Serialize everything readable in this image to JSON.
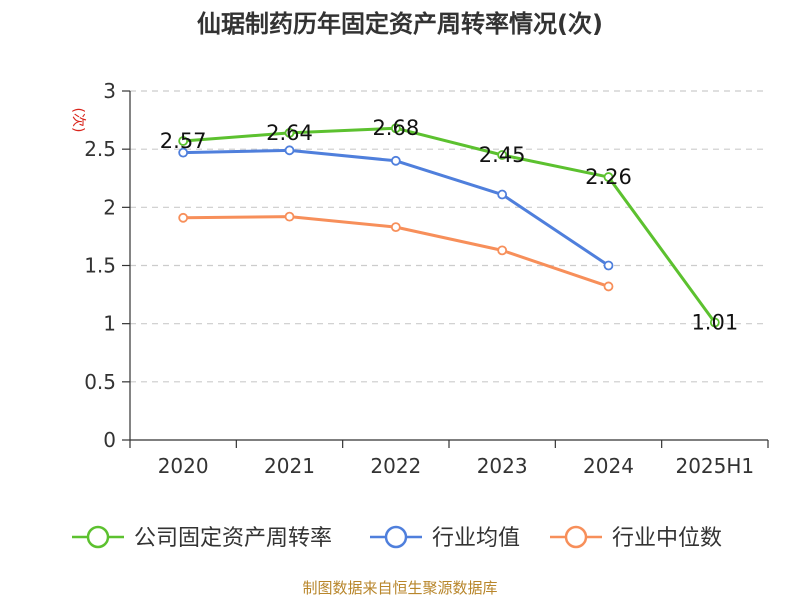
{
  "chart_data": {
    "type": "line",
    "title": "仙琚制药历年固定资产周转率情况(次)",
    "ylabel": "(次)",
    "xlabel": "",
    "categories": [
      "2020",
      "2021",
      "2022",
      "2023",
      "2024",
      "2025H1"
    ],
    "ylim": [
      0,
      3
    ],
    "yticks": [
      "0",
      "0.5",
      "1",
      "1.5",
      "2",
      "2.5",
      "3"
    ],
    "grid": true,
    "legend_position": "bottom",
    "series": [
      {
        "name": "公司固定资产周转率",
        "color": "#5cc12f",
        "values": [
          2.57,
          2.64,
          2.68,
          2.45,
          2.26,
          1.01
        ],
        "labels": [
          "2.57",
          "2.64",
          "2.68",
          "2.45",
          "2.26",
          "1.01"
        ]
      },
      {
        "name": "行业均值",
        "color": "#4f7fdc",
        "values": [
          2.47,
          2.49,
          2.4,
          2.11,
          1.5,
          null
        ]
      },
      {
        "name": "行业中位数",
        "color": "#f78f5a",
        "values": [
          1.91,
          1.92,
          1.83,
          1.63,
          1.32,
          null
        ]
      }
    ],
    "source": "制图数据来自恒生聚源数据库"
  },
  "colors": {
    "ylabel": "#d9251c",
    "axis": "#333333",
    "grid": "#cccccc",
    "source": "#b8862b"
  }
}
